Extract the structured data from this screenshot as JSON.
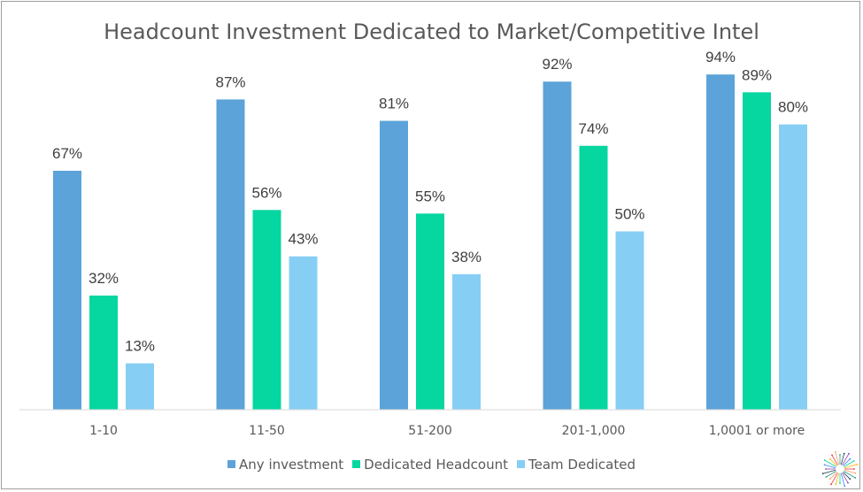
{
  "chart_data": {
    "type": "bar",
    "title": "Headcount Investment Dedicated to Market/Competitive  Intel",
    "categories": [
      "1-10",
      "11-50",
      "51-200",
      "201-1,000",
      "1,0001 or more"
    ],
    "series": [
      {
        "name": "Any investment",
        "values": [
          67,
          87,
          81,
          92,
          94
        ],
        "color": "#5ba3d9"
      },
      {
        "name": "Dedicated Headcount",
        "values": [
          32,
          56,
          55,
          74,
          89
        ],
        "color": "#06d6a0"
      },
      {
        "name": "Team Dedicated",
        "values": [
          13,
          43,
          38,
          50,
          80
        ],
        "color": "#87cef5"
      }
    ],
    "value_suffix": "%",
    "ylim": [
      0,
      100
    ],
    "grid": false,
    "legend_position": "bottom"
  },
  "logo": {
    "name": "starburst-logo-icon"
  }
}
